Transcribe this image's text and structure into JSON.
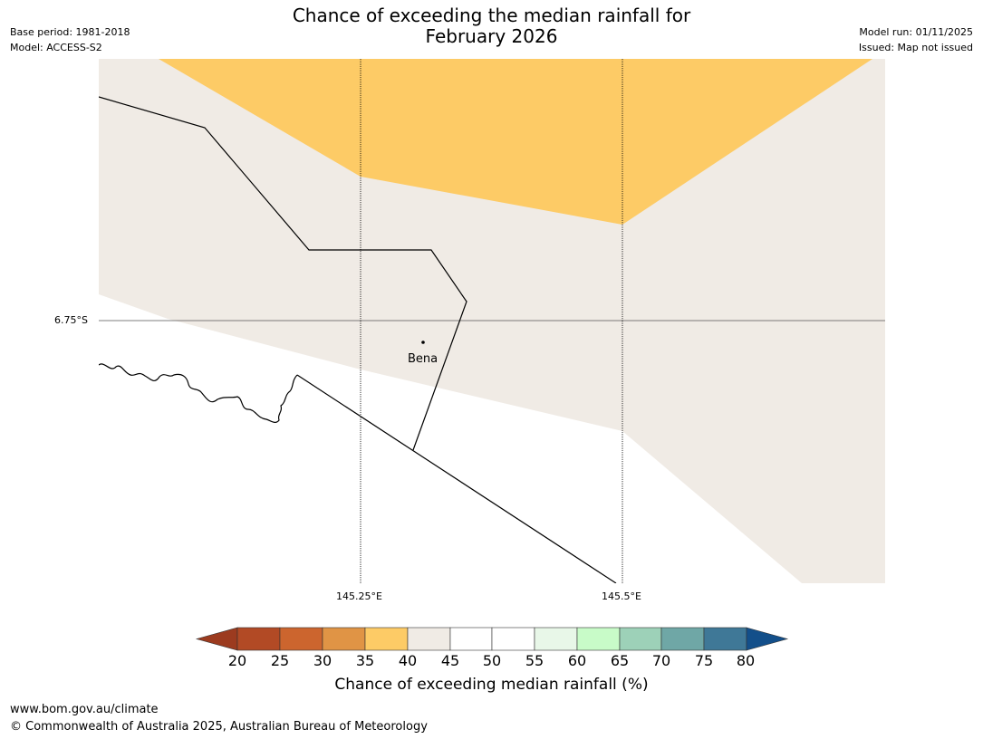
{
  "title_line1": "Chance of exceeding the median rainfall for",
  "title_line2": "February 2026",
  "meta": {
    "base_period": "Base period: 1981-2018",
    "model": "Model: ACCESS-S2",
    "model_run": "Model run: 01/11/2025",
    "issued": "Issued: Map not issued"
  },
  "map": {
    "lat_label": "6.75°S",
    "lon_labels": [
      "145.25°E",
      "145.5°E"
    ],
    "place": "Bena"
  },
  "colorbar": {
    "label": "Chance of exceeding median rainfall (%)",
    "ticks": [
      "20",
      "25",
      "30",
      "35",
      "40",
      "45",
      "50",
      "55",
      "60",
      "65",
      "70",
      "75",
      "80"
    ],
    "colors": [
      "#9c3b1f",
      "#b24a25",
      "#cc652e",
      "#e09445",
      "#fdcb66",
      "#f0ebe5",
      "#ffffff",
      "#ffffff",
      "#e8f7e8",
      "#c8fbc8",
      "#9dd1b8",
      "#6fa7a6",
      "#3f7897",
      "#134f8a"
    ]
  },
  "footer": {
    "url": "www.bom.gov.au/climate",
    "copyright": "© Commonwealth of Australia 2025, Australian Bureau of Meteorology"
  }
}
